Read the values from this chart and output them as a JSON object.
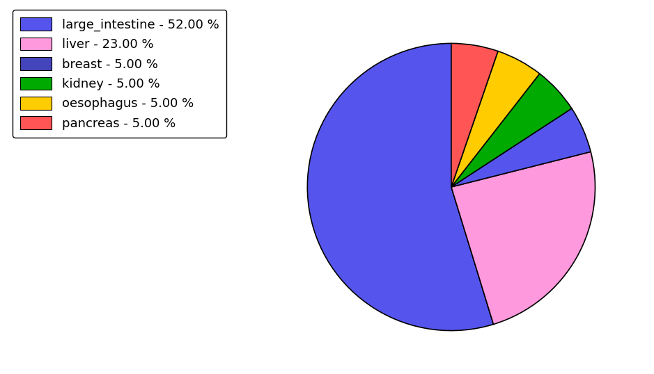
{
  "labels": [
    "large_intestine",
    "liver",
    "breast",
    "kidney",
    "oesophagus",
    "pancreas"
  ],
  "values": [
    52.0,
    23.0,
    5.0,
    5.0,
    5.0,
    5.0
  ],
  "colors": [
    "#5555ee",
    "#ff99dd",
    "#5555ee",
    "#00aa00",
    "#ffcc00",
    "#ff5555"
  ],
  "legend_colors": [
    "#5555ee",
    "#ff99dd",
    "#4444bb",
    "#00aa00",
    "#ffcc00",
    "#ff5555"
  ],
  "legend_labels": [
    "large_intestine - 52.00 %",
    "liver - 23.00 %",
    "breast - 5.00 %",
    "kidney - 5.00 %",
    "oesophagus - 5.00 %",
    "pancreas - 5.00 %"
  ],
  "figsize": [
    9.39,
    5.38
  ],
  "dpi": 100,
  "background_color": "#ffffff",
  "startangle": 90,
  "legend_fontsize": 13
}
